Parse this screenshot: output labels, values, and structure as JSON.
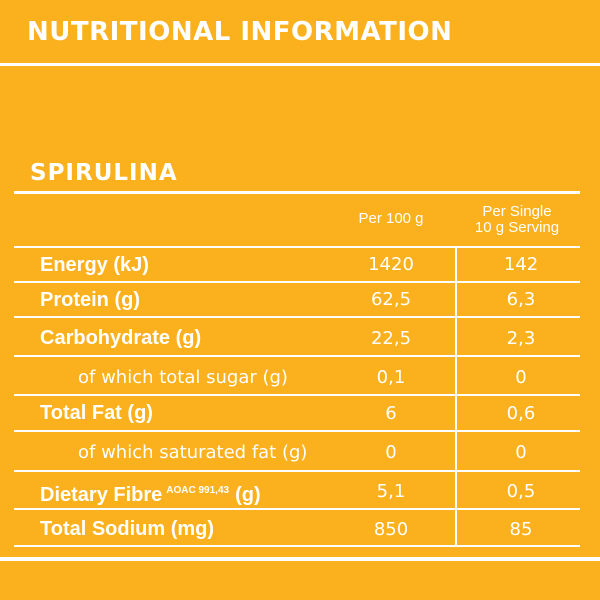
{
  "header": {
    "title": "NUTRITIONAL INFORMATION"
  },
  "product": {
    "name": "SPIRULINA"
  },
  "columns": {
    "per_100g": "Per 100 g",
    "per_serving_line1": "Per Single",
    "per_serving_line2": "10 g Serving"
  },
  "rows": [
    {
      "label": "Energy (kJ)",
      "per_100g": "1420",
      "per_serving": "142"
    },
    {
      "label": "Protein (g)",
      "per_100g": "62,5",
      "per_serving": "6,3"
    },
    {
      "label": "Carbohydrate (g)",
      "per_100g": "22,5",
      "per_serving": "2,3"
    },
    {
      "label": "of which total sugar (g)",
      "per_100g": "0,1",
      "per_serving": "0"
    },
    {
      "label": "Total Fat (g)",
      "per_100g": "6",
      "per_serving": "0,6"
    },
    {
      "label": "of which saturated fat (g)",
      "per_100g": "0",
      "per_serving": "0"
    },
    {
      "label": "Dietary Fibre",
      "label_sup": "AOAC 991,43",
      "label_suffix": "(g)",
      "per_100g": "5,1",
      "per_serving": "0,5"
    },
    {
      "label": "Total Sodium (mg)",
      "per_100g": "850",
      "per_serving": "85"
    }
  ]
}
